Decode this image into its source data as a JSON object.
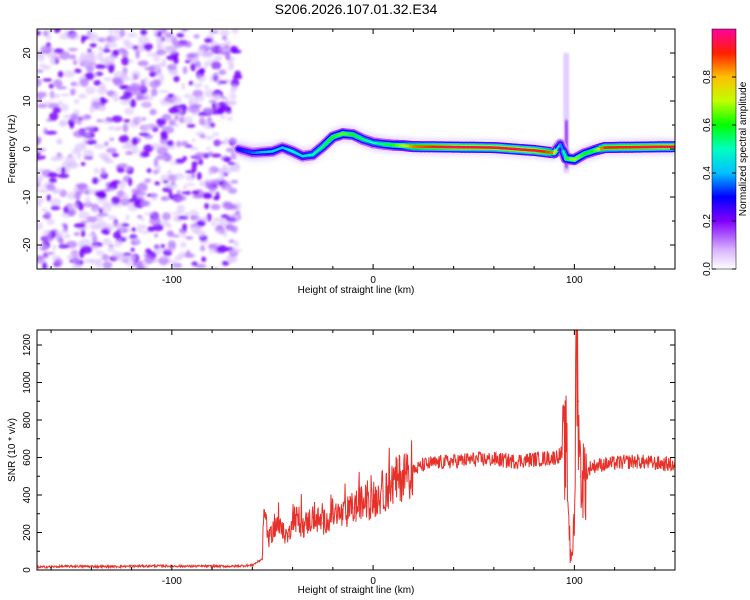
{
  "title": "S206.2026.107.01.32.E34",
  "colorbar": {
    "label": "Normalized spectral amplitude",
    "ticks": [
      "0.0",
      "0.2",
      "0.4",
      "0.6",
      "0.8"
    ]
  },
  "colors": {
    "snr_line": "#e8302a",
    "spectrogram_low": "#8a2be2",
    "spectrogram_high": "#ff0000"
  },
  "chart_data": [
    {
      "type": "heatmap",
      "title": "S206.2026.107.01.32.E34",
      "xlabel": "Height of straight line (km)",
      "ylabel": "Frequency (Hz)",
      "xlim": [
        -167,
        150
      ],
      "ylim": [
        -25,
        25
      ],
      "xticks": [
        -100,
        0,
        100
      ],
      "xtick_labels": [
        "-100",
        "0",
        "100"
      ],
      "yticks": [
        -20,
        -10,
        0,
        10,
        20
      ],
      "ytick_labels": [
        "-20",
        "-10",
        "0",
        "10",
        "20"
      ],
      "noise_region_x": [
        -167,
        -67
      ],
      "ridge": {
        "x": [
          -67,
          -60,
          -50,
          -45,
          -40,
          -35,
          -30,
          -25,
          -20,
          -15,
          -10,
          -5,
          0,
          5,
          10,
          15,
          20,
          40,
          60,
          80,
          90,
          93,
          96,
          100,
          105,
          110,
          115,
          150
        ],
        "y": [
          0,
          -0.8,
          -0.5,
          0.3,
          -0.5,
          -1.5,
          -1.2,
          0.5,
          2.5,
          3.2,
          3.0,
          2.0,
          1.3,
          1.0,
          0.8,
          0.7,
          0.5,
          0.4,
          0.3,
          -0.3,
          -0.8,
          1.0,
          -2.0,
          -2.2,
          -1.0,
          -0.3,
          0.3,
          0.5
        ],
        "amplitude": [
          0.3,
          0.35,
          0.45,
          0.4,
          0.5,
          0.45,
          0.5,
          0.55,
          0.6,
          0.65,
          0.6,
          0.55,
          0.5,
          0.55,
          0.6,
          0.7,
          0.85,
          0.95,
          0.95,
          0.95,
          0.85,
          0.3,
          0.6,
          0.7,
          0.6,
          0.6,
          0.9,
          0.95
        ]
      },
      "spike": {
        "x": 96,
        "ylim": [
          -5,
          20
        ]
      }
    },
    {
      "type": "line",
      "xlabel": "Height of straight line (km)",
      "ylabel": "SNR (10 * v/v)",
      "xlim": [
        -167,
        150
      ],
      "ylim": [
        0,
        1280
      ],
      "xticks": [
        -100,
        0,
        100
      ],
      "xtick_labels": [
        "-100",
        "0",
        "100"
      ],
      "yticks": [
        0,
        200,
        400,
        600,
        800,
        1000,
        1200
      ],
      "ytick_labels": [
        "0",
        "200",
        "400",
        "600",
        "800",
        "1000",
        "1200"
      ],
      "series": [
        {
          "name": "SNR",
          "x": [
            -167,
            -150,
            -130,
            -110,
            -90,
            -70,
            -60,
            -55,
            -54,
            -52,
            -48,
            -45,
            -42,
            -40,
            -35,
            -30,
            -25,
            -20,
            -15,
            -10,
            -5,
            0,
            5,
            10,
            15,
            20,
            25,
            30,
            40,
            50,
            60,
            70,
            80,
            90,
            94,
            96,
            98,
            100,
            101,
            102,
            103,
            105,
            108,
            112,
            120,
            130,
            140,
            150
          ],
          "y": [
            15,
            20,
            18,
            22,
            20,
            20,
            25,
            60,
            320,
            160,
            250,
            200,
            180,
            300,
            230,
            280,
            250,
            300,
            290,
            330,
            360,
            370,
            420,
            460,
            510,
            530,
            560,
            570,
            580,
            590,
            590,
            580,
            590,
            600,
            620,
            650,
            80,
            200,
            1280,
            900,
            500,
            480,
            550,
            560,
            570,
            580,
            570,
            560
          ]
        }
      ]
    }
  ]
}
